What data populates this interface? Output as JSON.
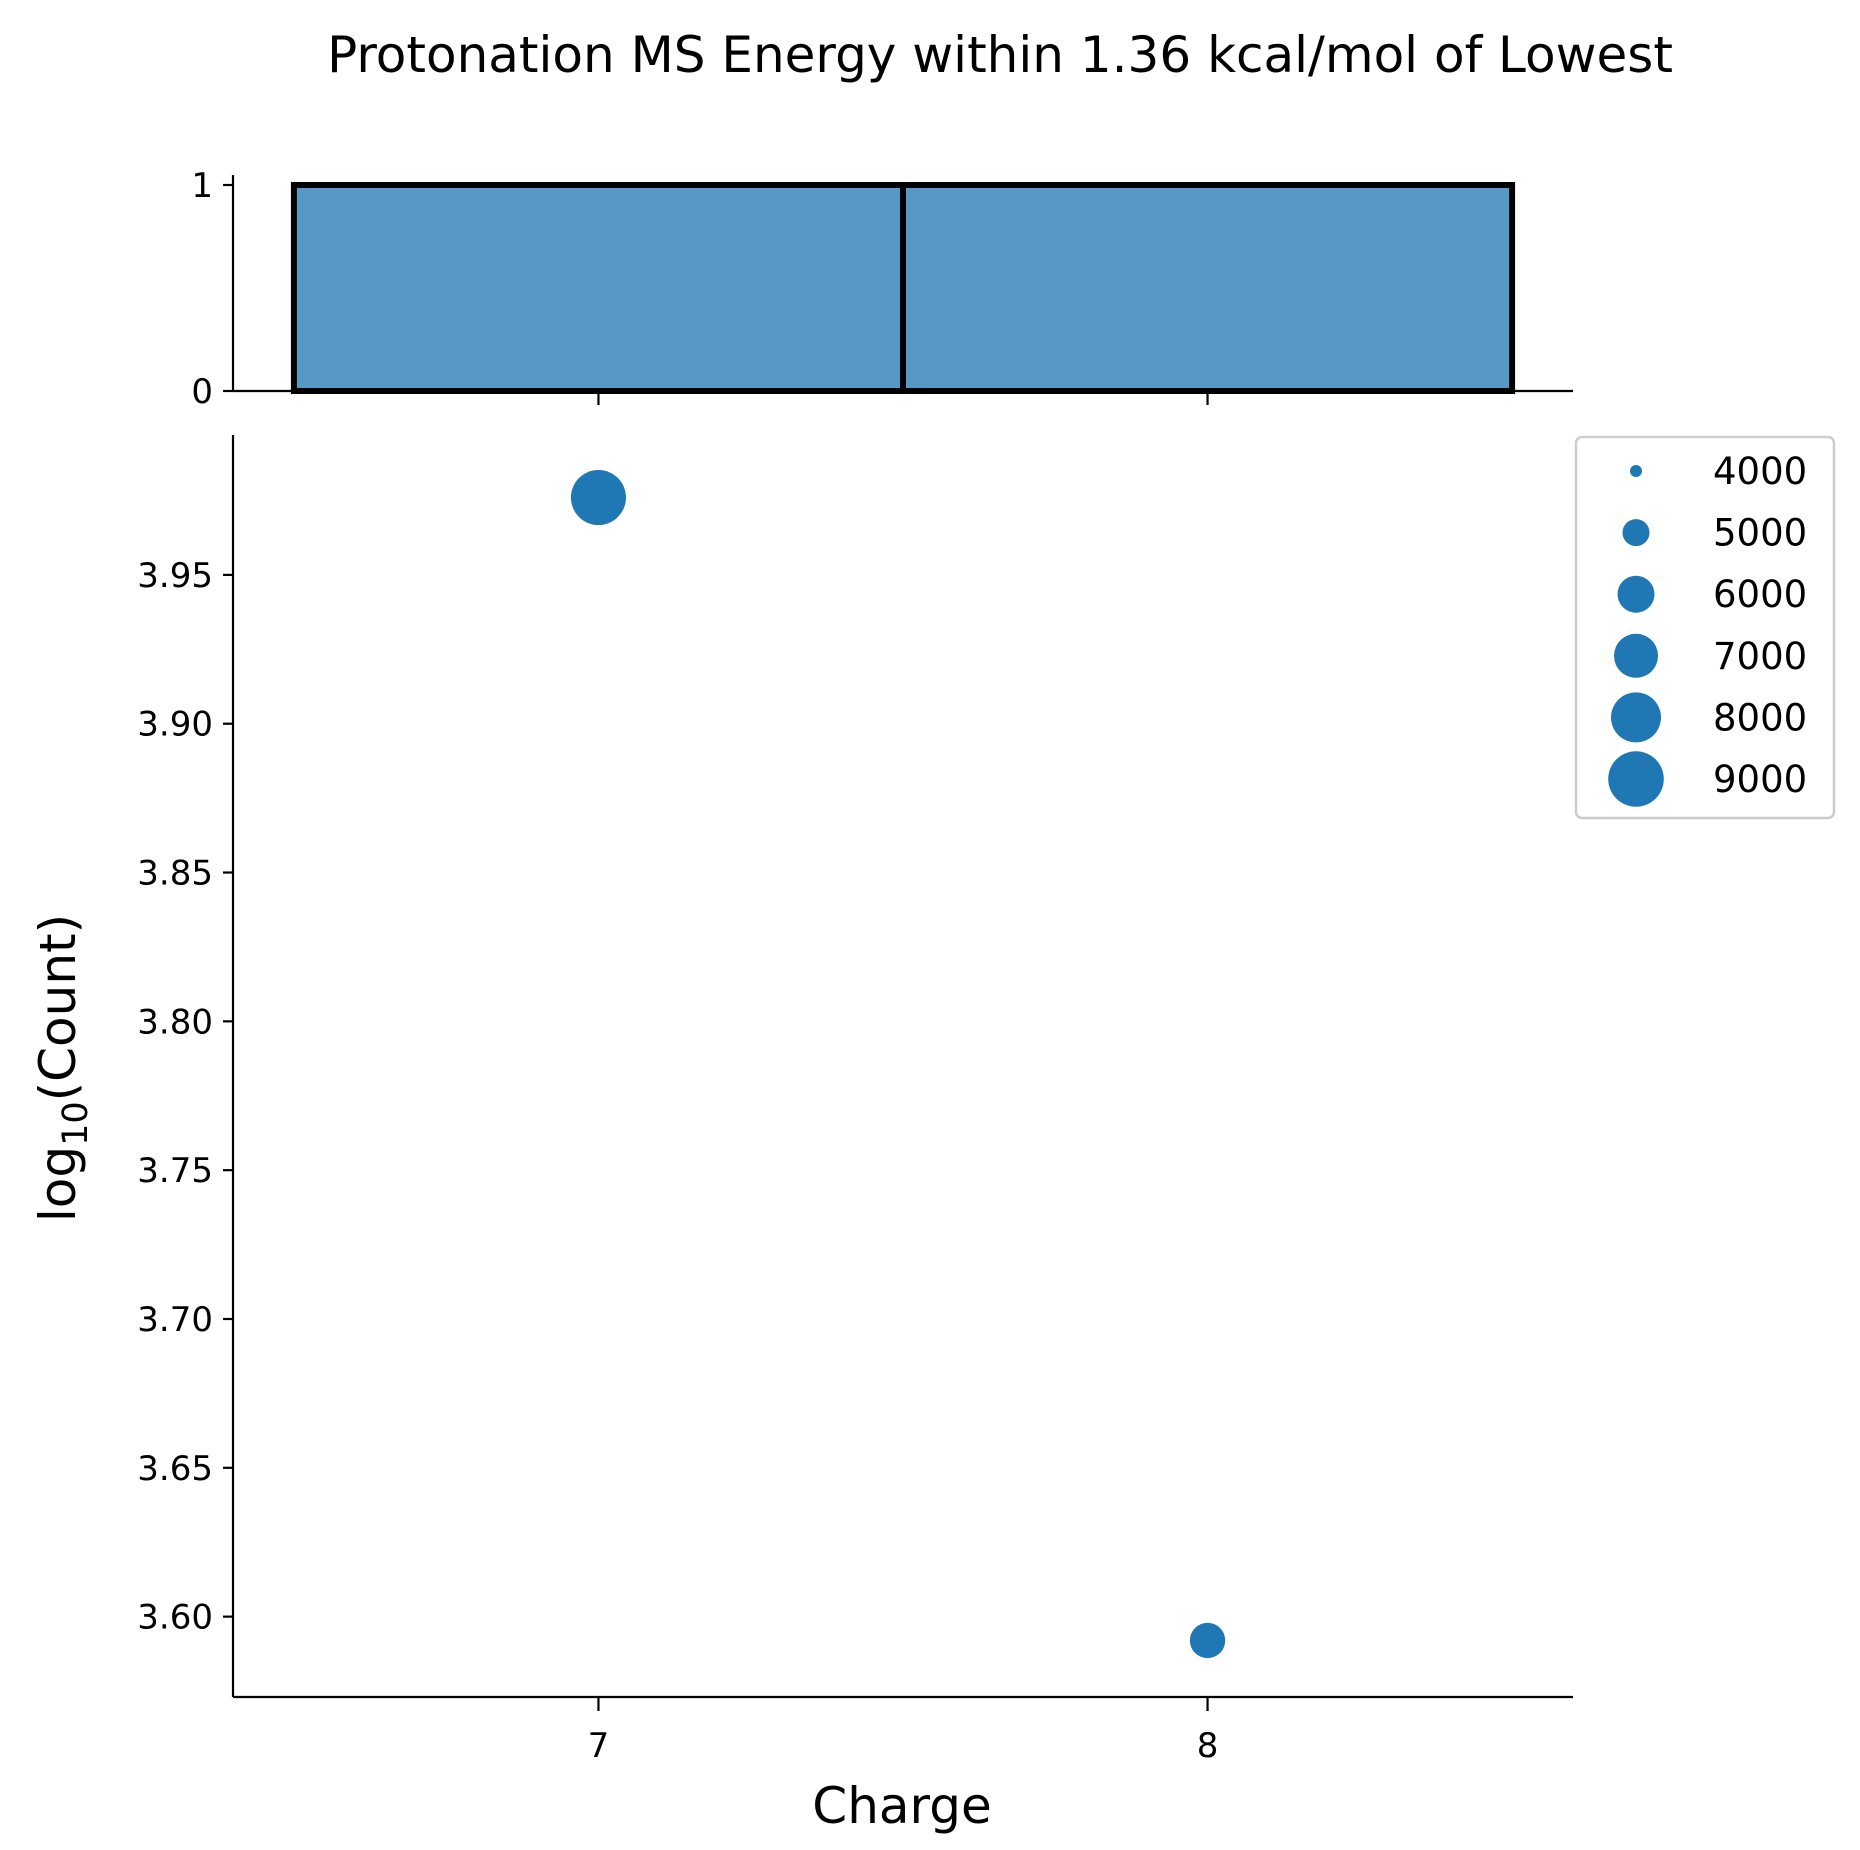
{
  "title": "Protonation MS Energy within 1.36 kcal/mol of Lowest",
  "chart_data": [
    {
      "type": "bar",
      "panel": "marginal-histogram",
      "categories": [
        "7",
        "8"
      ],
      "values": [
        1,
        1
      ],
      "yticks": [
        0,
        1
      ],
      "ylim": [
        0,
        1
      ],
      "bar_color": "#5799c6",
      "edge_color": "#000000"
    },
    {
      "type": "scatter",
      "panel": "main",
      "xlabel": "Charge",
      "ylabel_base": "log",
      "ylabel_sub": "10",
      "ylabel_rest": "(Count)",
      "xticks": [
        7,
        8
      ],
      "xlim": [
        6.4,
        8.6
      ],
      "ylim": [
        3.573,
        3.997
      ],
      "yticks": [
        3.6,
        3.65,
        3.7,
        3.75,
        3.8,
        3.85,
        3.9,
        3.95
      ],
      "ytick_labels": [
        "3.60",
        "3.65",
        "3.70",
        "3.75",
        "3.80",
        "3.85",
        "3.90",
        "3.95"
      ],
      "points": [
        {
          "x": 7,
          "y": 3.976,
          "size": 9464
        },
        {
          "x": 8,
          "y": 3.592,
          "size": 3908
        }
      ],
      "point_color": "#1f77b4",
      "legend": {
        "placement": "outside-right",
        "entries": [
          "4000",
          "5000",
          "6000",
          "7000",
          "8000",
          "9000"
        ],
        "sizes": [
          4000,
          5000,
          6000,
          7000,
          8000,
          9000
        ]
      }
    }
  ]
}
